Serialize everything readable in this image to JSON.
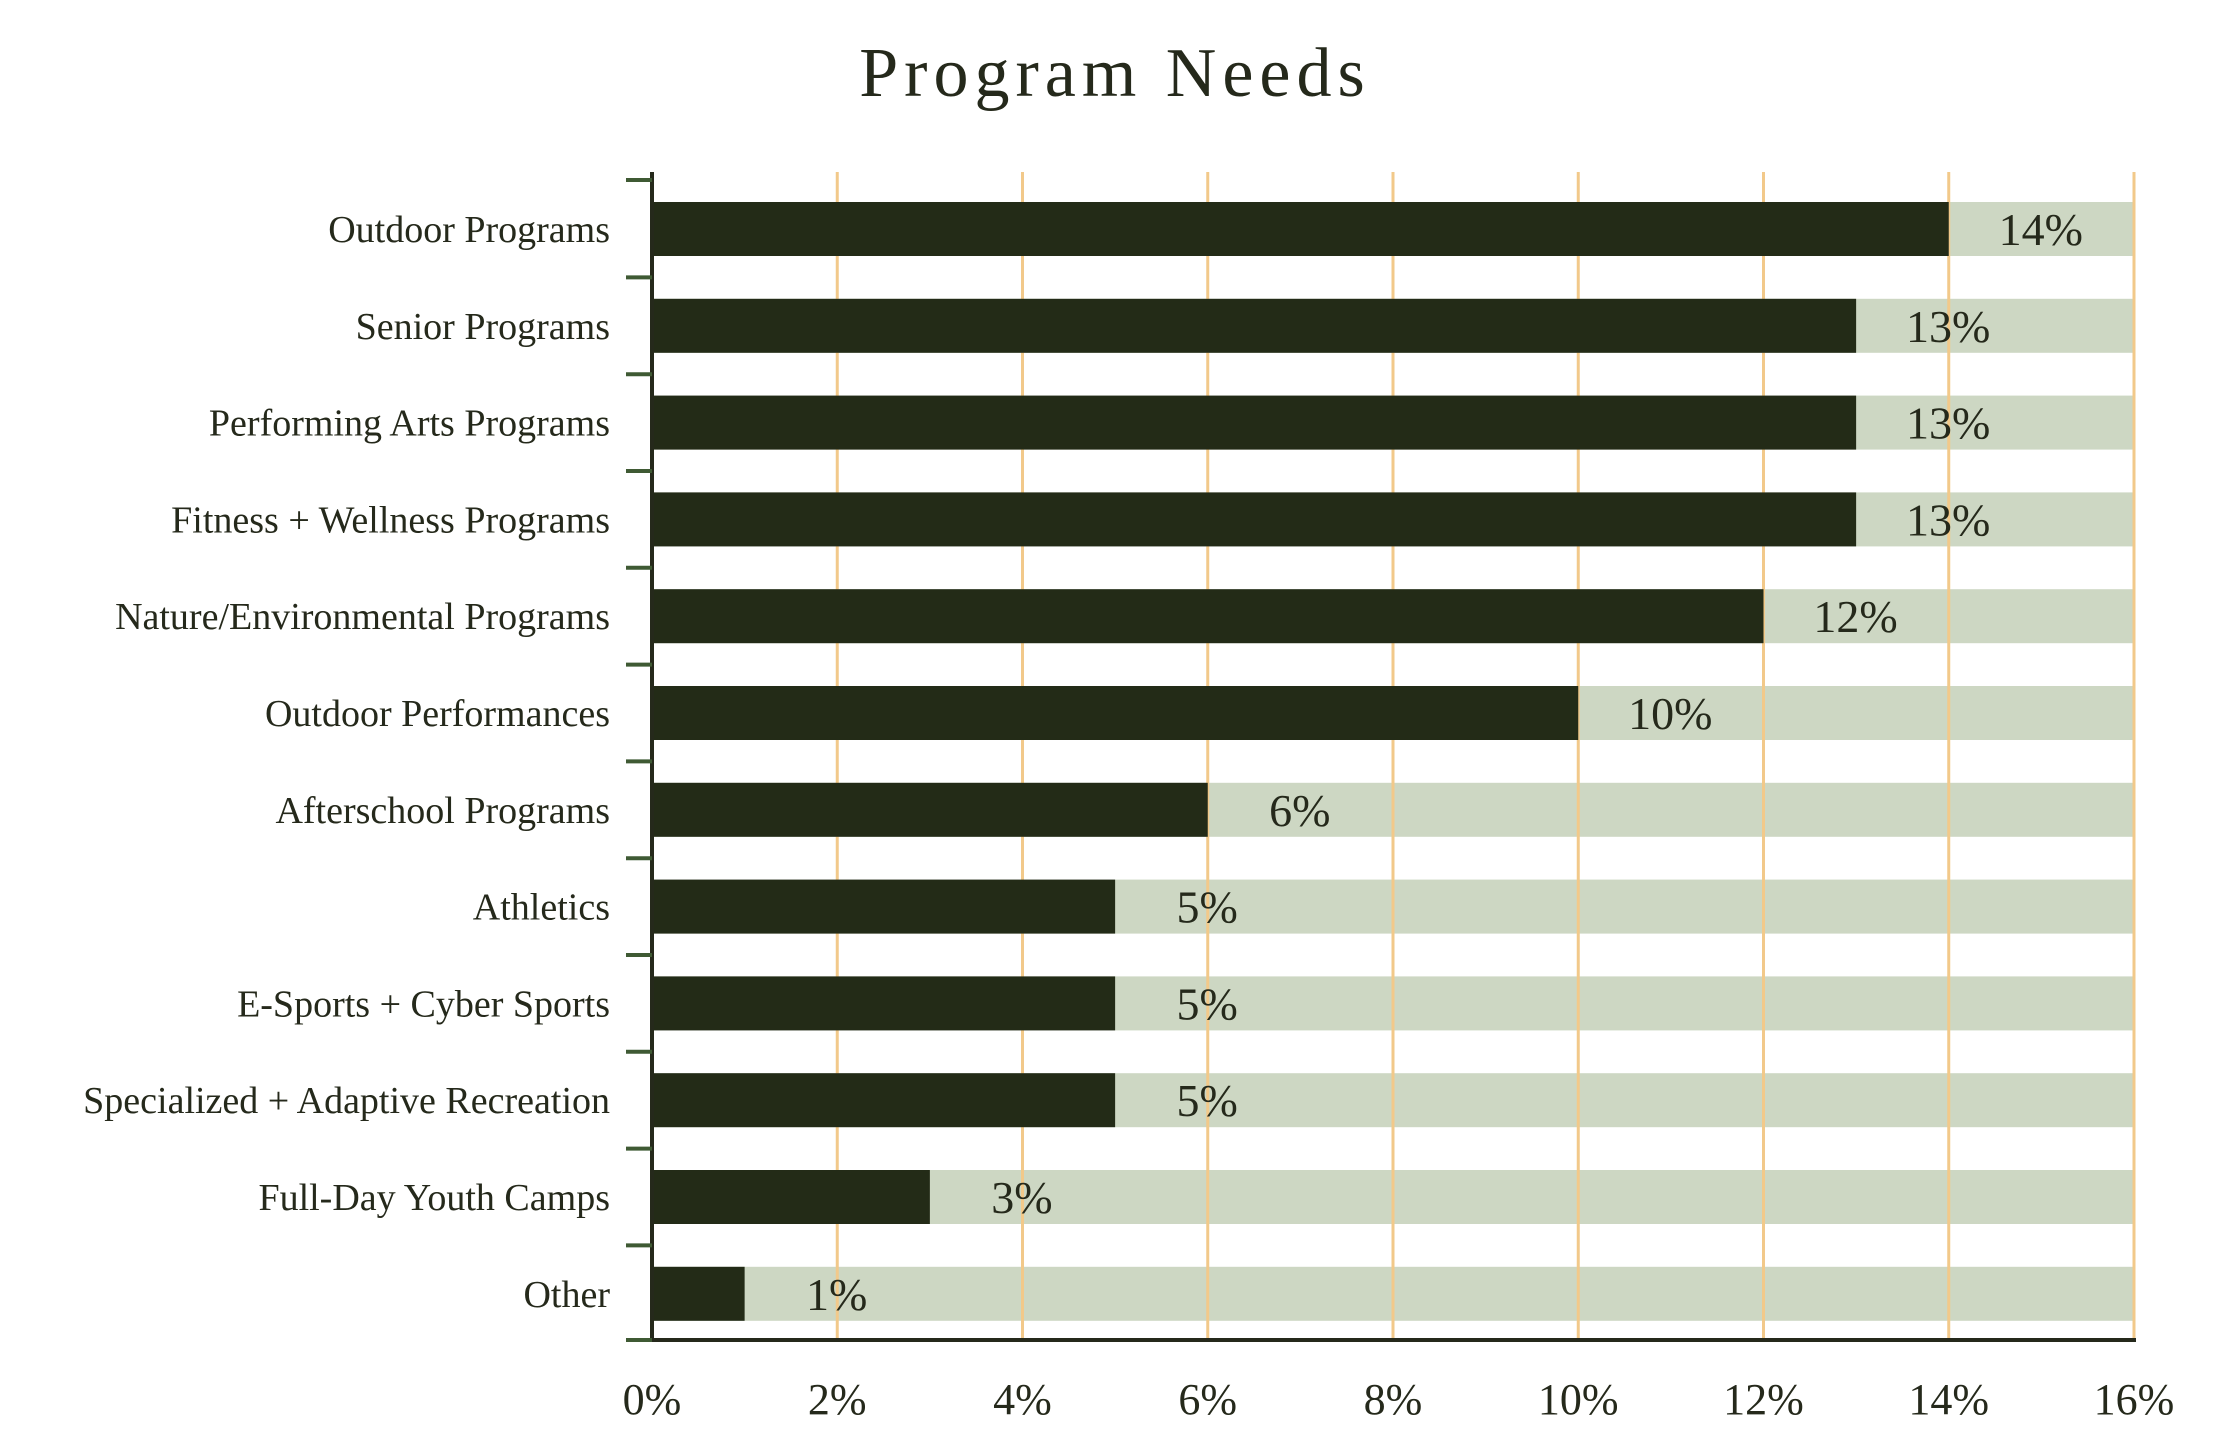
{
  "chart_data": {
    "type": "bar",
    "orientation": "horizontal",
    "title": "Program Needs",
    "categories": [
      "Outdoor Programs",
      "Senior Programs",
      "Performing Arts Programs",
      "Fitness + Wellness Programs",
      "Nature/Environmental Programs",
      "Outdoor Performances",
      "Afterschool Programs",
      "Athletics",
      "E-Sports + Cyber Sports",
      "Specialized + Adaptive Recreation",
      "Full-Day Youth Camps",
      "Other"
    ],
    "values": [
      14,
      13,
      13,
      13,
      12,
      10,
      6,
      5,
      5,
      5,
      3,
      1
    ],
    "value_labels": [
      "14%",
      "13%",
      "13%",
      "13%",
      "12%",
      "10%",
      "6%",
      "5%",
      "5%",
      "5%",
      "3%",
      "1%"
    ],
    "xlim": [
      0,
      16
    ],
    "x_ticks": [
      0,
      2,
      4,
      6,
      8,
      10,
      12,
      14,
      16
    ],
    "x_tick_labels": [
      "0%",
      "2%",
      "4%",
      "6%",
      "8%",
      "10%",
      "12%",
      "14%",
      "16%"
    ],
    "xlabel": "",
    "ylabel": "",
    "grid": "vertical",
    "legend": "none",
    "colors": {
      "bar": "#232b17",
      "track": "#cdd7c3",
      "grid": "#f2c98a",
      "axis": "#25291b",
      "tick": "#3f5a34",
      "text": "#25291b",
      "background": "#ffffff"
    }
  }
}
